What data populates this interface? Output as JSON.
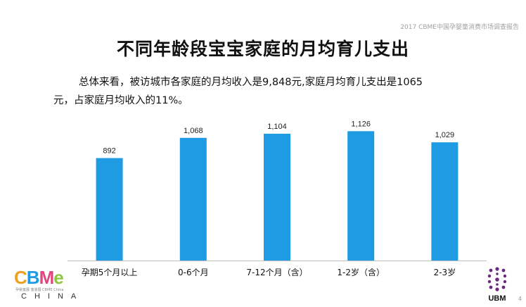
{
  "header_note": "2017 CBME中国孕婴童消费市场调查报告",
  "title": "不同年龄段宝宝家庭的月均育儿支出",
  "summary_line1": "总体来看，被访城市各家庭的月均收入是9,848元,家庭月均育儿支出是1065",
  "summary_line2": "元，占家庭月均收入的11%。",
  "chart_data": {
    "type": "bar",
    "title": "",
    "xlabel": "",
    "ylabel": "",
    "categories": [
      "孕期5个月以上",
      "0-6个月",
      "7-12个月（含）",
      "1-2岁（含）",
      "2-3岁"
    ],
    "values": [
      892,
      1068,
      1104,
      1126,
      1029
    ],
    "value_labels": [
      "892",
      "1,068",
      "1,104",
      "1,126",
      "1,029"
    ],
    "ylim": [
      0,
      1226
    ],
    "grid": false,
    "bar_color": "#1f9be3"
  },
  "logo_left": {
    "letters": [
      "C",
      "B",
      "M",
      "e"
    ],
    "colors": [
      "#f0a020",
      "#1f9be3",
      "#e0477f",
      "#8dc63f"
    ],
    "subtitle": "孕婴童展 童装展 CBME China",
    "sub": "CHINA"
  },
  "logo_right": {
    "text": "UBM"
  },
  "page_number": "4"
}
